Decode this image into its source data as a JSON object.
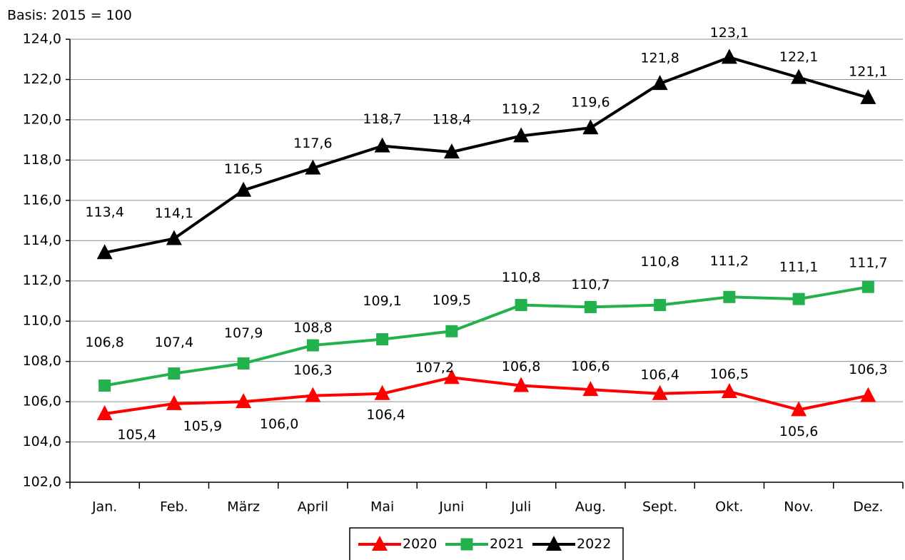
{
  "chart_data": {
    "type": "line",
    "subtitle": "Basis: 2015 = 100",
    "categories": [
      "Jan.",
      "Feb.",
      "März",
      "April",
      "Mai",
      "Juni",
      "Juli",
      "Aug.",
      "Sept.",
      "Okt.",
      "Nov.",
      "Dez."
    ],
    "series": [
      {
        "name": "2020",
        "color": "#ff0000",
        "marker": "triangle",
        "values": [
          105.4,
          105.9,
          106.0,
          106.3,
          106.4,
          107.2,
          106.8,
          106.6,
          106.4,
          106.5,
          105.6,
          106.3
        ],
        "value_labels": [
          "105,4",
          "105,9",
          "106,0",
          "106,3",
          "106,4",
          "107,2",
          "106,8",
          "106,6",
          "106,4",
          "106,5",
          "105,6",
          "106,3"
        ]
      },
      {
        "name": "2021",
        "color": "#22b14c",
        "marker": "square",
        "values": [
          106.8,
          107.4,
          107.9,
          108.8,
          109.1,
          109.5,
          110.8,
          110.7,
          110.8,
          111.2,
          111.1,
          111.7
        ],
        "value_labels": [
          "106,8",
          "107,4",
          "107,9",
          "108,8",
          "109,1",
          "109,5",
          "110,8",
          "110,7",
          "110,8",
          "111,2",
          "111,1",
          "111,7"
        ]
      },
      {
        "name": "2022",
        "color": "#000000",
        "marker": "triangle",
        "values": [
          113.4,
          114.1,
          116.5,
          117.6,
          118.7,
          118.4,
          119.2,
          119.6,
          121.8,
          123.1,
          122.1,
          121.1
        ],
        "value_labels": [
          "113,4",
          "114,1",
          "116,5",
          "117,6",
          "118,7",
          "118,4",
          "119,2",
          "119,6",
          "121,8",
          "123,1",
          "122,1",
          "121,1"
        ]
      }
    ],
    "ylim": [
      102,
      124
    ],
    "yticks": [
      {
        "value": 102,
        "label": "102,0"
      },
      {
        "value": 104,
        "label": "104,0"
      },
      {
        "value": 106,
        "label": "106,0"
      },
      {
        "value": 108,
        "label": "108,0"
      },
      {
        "value": 110,
        "label": "110,0"
      },
      {
        "value": 112,
        "label": "112,0"
      },
      {
        "value": 114,
        "label": "114,0"
      },
      {
        "value": 116,
        "label": "116,0"
      },
      {
        "value": 118,
        "label": "118,0"
      },
      {
        "value": 120,
        "label": "120,0"
      },
      {
        "value": 122,
        "label": "122,0"
      },
      {
        "value": 124,
        "label": "124,0"
      }
    ],
    "grid": true,
    "legend": "bottom"
  }
}
